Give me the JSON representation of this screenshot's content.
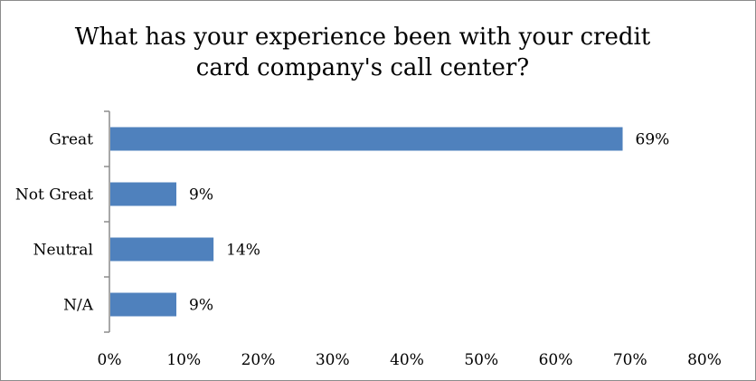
{
  "chart_data": {
    "type": "bar",
    "orientation": "horizontal",
    "title": "What has your experience been with your credit card company's call center?",
    "title_lines": [
      "What has your experience been with your credit",
      "card company's call center?"
    ],
    "categories": [
      "Great",
      "Not Great",
      "Neutral",
      "N/A"
    ],
    "values": [
      69,
      9,
      14,
      9
    ],
    "value_labels": [
      "69%",
      "9%",
      "14%",
      "9%"
    ],
    "xlabel": "",
    "ylabel": "",
    "xlim": [
      0,
      80
    ],
    "x_ticks": [
      0,
      10,
      20,
      30,
      40,
      50,
      60,
      70,
      80
    ],
    "x_tick_labels": [
      "0%",
      "10%",
      "20%",
      "30%",
      "40%",
      "50%",
      "60%",
      "70%",
      "80%"
    ],
    "grid": false,
    "legend": "none",
    "bar_color": "#4f81bd",
    "axis_color": "#8c8c8c"
  }
}
